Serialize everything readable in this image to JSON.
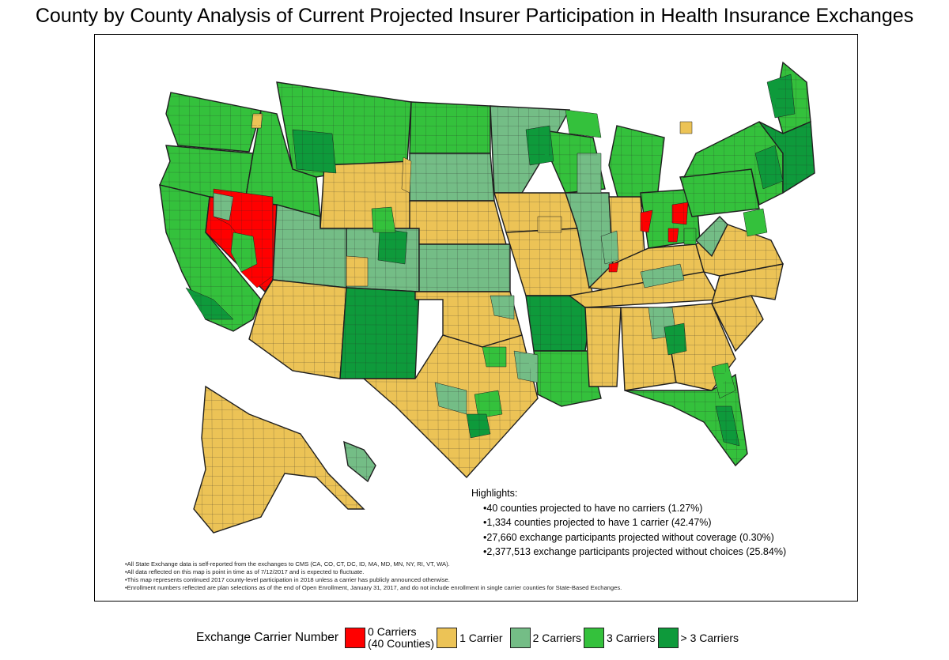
{
  "title": "County by County Analysis of Current Projected Insurer Participation in Health Insurance Exchanges",
  "colors": {
    "zero": "#ff0000",
    "one": "#ecc356",
    "two": "#74bd86",
    "three": "#34c13c",
    "more": "#0e9a3b",
    "border": "#1f1f1f"
  },
  "highlights": {
    "heading": "Highlights:",
    "items": [
      "40 counties projected to have no carriers (1.27%)",
      "1,334 counties projected to have 1 carrier (42.47%)",
      "27,660 exchange participants projected without coverage (0.30%)",
      "2,377,513 exchange participants projected without choices (25.84%)"
    ]
  },
  "notes": [
    "All State Exchange data is self-reported from the exchanges to CMS (CA, CO, CT, DC, ID, MA, MD, MN, NY, RI, VT, WA).",
    "All data reflected on this map is point in time as of 7/12/2017 and is expected to fluctuate.",
    "This map represents continued 2017 county-level participation in 2018 unless a carrier has publicly announced otherwise.",
    "Enrollment numbers reflected are plan selections as of the end of Open Enrollment, January 31, 2017, and do not include enrollment in single carrier counties for State-Based Exchanges."
  ],
  "legend": {
    "title": "Exchange Carrier Number",
    "items": [
      {
        "label_line1": "0 Carriers",
        "label_line2": "(40 Counties)",
        "color": "#ff0000"
      },
      {
        "label_line1": "1 Carrier",
        "label_line2": "",
        "color": "#ecc356"
      },
      {
        "label_line1": "2 Carriers",
        "label_line2": "",
        "color": "#74bd86"
      },
      {
        "label_line1": "3 Carriers",
        "label_line2": "",
        "color": "#34c13c"
      },
      {
        "label_line1": "> 3 Carriers",
        "label_line2": "",
        "color": "#0e9a3b"
      }
    ]
  },
  "map_regions": [
    {
      "state": "WA",
      "carriers": "3"
    },
    {
      "state": "OR",
      "carriers": "3"
    },
    {
      "state": "CA",
      "carriers": "3"
    },
    {
      "state": "NV",
      "carriers": "0"
    },
    {
      "state": "ID",
      "carriers": "3"
    },
    {
      "state": "MT",
      "carriers": "3"
    },
    {
      "state": "WY",
      "carriers": "1"
    },
    {
      "state": "UT",
      "carriers": "2"
    },
    {
      "state": "AZ",
      "carriers": "1"
    },
    {
      "state": "CO",
      "carriers": "2"
    },
    {
      "state": "NM",
      "carriers": ">3"
    },
    {
      "state": "ND",
      "carriers": "3"
    },
    {
      "state": "SD",
      "carriers": "2"
    },
    {
      "state": "NE",
      "carriers": "1"
    },
    {
      "state": "KS",
      "carriers": "2"
    },
    {
      "state": "OK",
      "carriers": "1"
    },
    {
      "state": "TX",
      "carriers": "1"
    },
    {
      "state": "MN",
      "carriers": "2"
    },
    {
      "state": "IA",
      "carriers": "1"
    },
    {
      "state": "MO",
      "carriers": "1"
    },
    {
      "state": "AR",
      "carriers": ">3"
    },
    {
      "state": "LA",
      "carriers": "3"
    },
    {
      "state": "WI",
      "carriers": "3"
    },
    {
      "state": "IL",
      "carriers": "2"
    },
    {
      "state": "MI",
      "carriers": "3"
    },
    {
      "state": "IN",
      "carriers": "1"
    },
    {
      "state": "OH",
      "carriers": "3"
    },
    {
      "state": "KY",
      "carriers": "1"
    },
    {
      "state": "TN",
      "carriers": "1"
    },
    {
      "state": "MS",
      "carriers": "1"
    },
    {
      "state": "AL",
      "carriers": "1"
    },
    {
      "state": "GA",
      "carriers": "1"
    },
    {
      "state": "FL",
      "carriers": "3"
    },
    {
      "state": "SC",
      "carriers": "1"
    },
    {
      "state": "NC",
      "carriers": "1"
    },
    {
      "state": "VA",
      "carriers": "1"
    },
    {
      "state": "WV",
      "carriers": "2"
    },
    {
      "state": "PA",
      "carriers": "3"
    },
    {
      "state": "NY",
      "carriers": "3"
    },
    {
      "state": "ME",
      "carriers": "3"
    },
    {
      "state": "New England",
      "carriers": ">3"
    },
    {
      "state": "AK",
      "carriers": "1"
    },
    {
      "state": "HI",
      "carriers": "2"
    }
  ]
}
